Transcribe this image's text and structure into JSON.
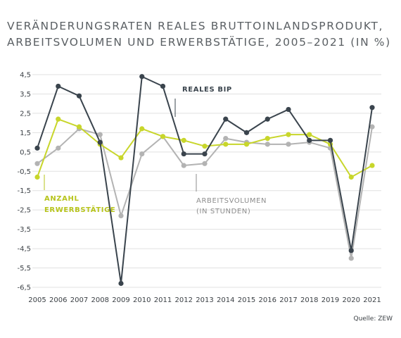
{
  "title_lines": [
    "VERÄNDERUNGSRATEN REALES BRUTTOINLANDSPRODUKT,",
    "ARBEITSVOLUMEN UND ERWERBSTÄTIGE, 2005–2021 (IN %)"
  ],
  "source": "Quelle: ZEW",
  "colors": {
    "gdp": "#3a444d",
    "employment": "#c8d62b",
    "hours": "#b3b3b3",
    "grid": "#e1e1e1",
    "axis_text": "#3a3f44",
    "employment_label": "#b7c41c",
    "hours_label": "#8d8d8d"
  },
  "chart_data": {
    "type": "line",
    "x": [
      "2005",
      "2006",
      "2007",
      "2008",
      "2009",
      "2010",
      "2011",
      "2012",
      "2013",
      "2014",
      "2015",
      "2016",
      "2017",
      "2018",
      "2019",
      "2020",
      "2021"
    ],
    "ylim": [
      -6.5,
      4.5
    ],
    "yticks": [
      "4,5",
      "3,5",
      "2,5",
      "1,5",
      "0,5",
      "-0,5",
      "-1,5",
      "-2,5",
      "-3,5",
      "-4,5",
      "-5,5",
      "-6,5"
    ],
    "ytick_values": [
      4.5,
      3.5,
      2.5,
      1.5,
      0.5,
      -0.5,
      -1.5,
      -2.5,
      -3.5,
      -4.5,
      -5.5,
      -6.5
    ],
    "grid": true,
    "series": [
      {
        "key": "hours",
        "name": "ARBEITSVOLUMEN (IN STUNDEN)",
        "name_lines": [
          "ARBEITSVOLUMEN",
          "(IN STUNDEN)"
        ],
        "values": [
          -0.1,
          0.7,
          1.7,
          1.4,
          -2.8,
          0.4,
          1.3,
          -0.2,
          -0.1,
          1.2,
          1.0,
          0.9,
          0.9,
          1.0,
          0.7,
          -5.0,
          1.8
        ]
      },
      {
        "key": "employment",
        "name": "ANZAHL ERWERBSTÄTIGE",
        "name_lines": [
          "ANZAHL",
          "ERWERBSTÄTIGE"
        ],
        "values": [
          -0.8,
          2.2,
          1.8,
          0.9,
          0.2,
          1.7,
          1.3,
          1.1,
          0.8,
          0.9,
          0.9,
          1.2,
          1.4,
          1.4,
          0.9,
          -0.8,
          -0.2
        ]
      },
      {
        "key": "gdp",
        "name": "REALES BIP",
        "name_lines": [
          "REALES BIP"
        ],
        "values": [
          0.7,
          3.9,
          3.4,
          1.0,
          -6.3,
          4.4,
          3.9,
          0.4,
          0.4,
          2.2,
          1.5,
          2.2,
          2.7,
          1.1,
          1.1,
          -4.6,
          2.8
        ]
      }
    ]
  }
}
